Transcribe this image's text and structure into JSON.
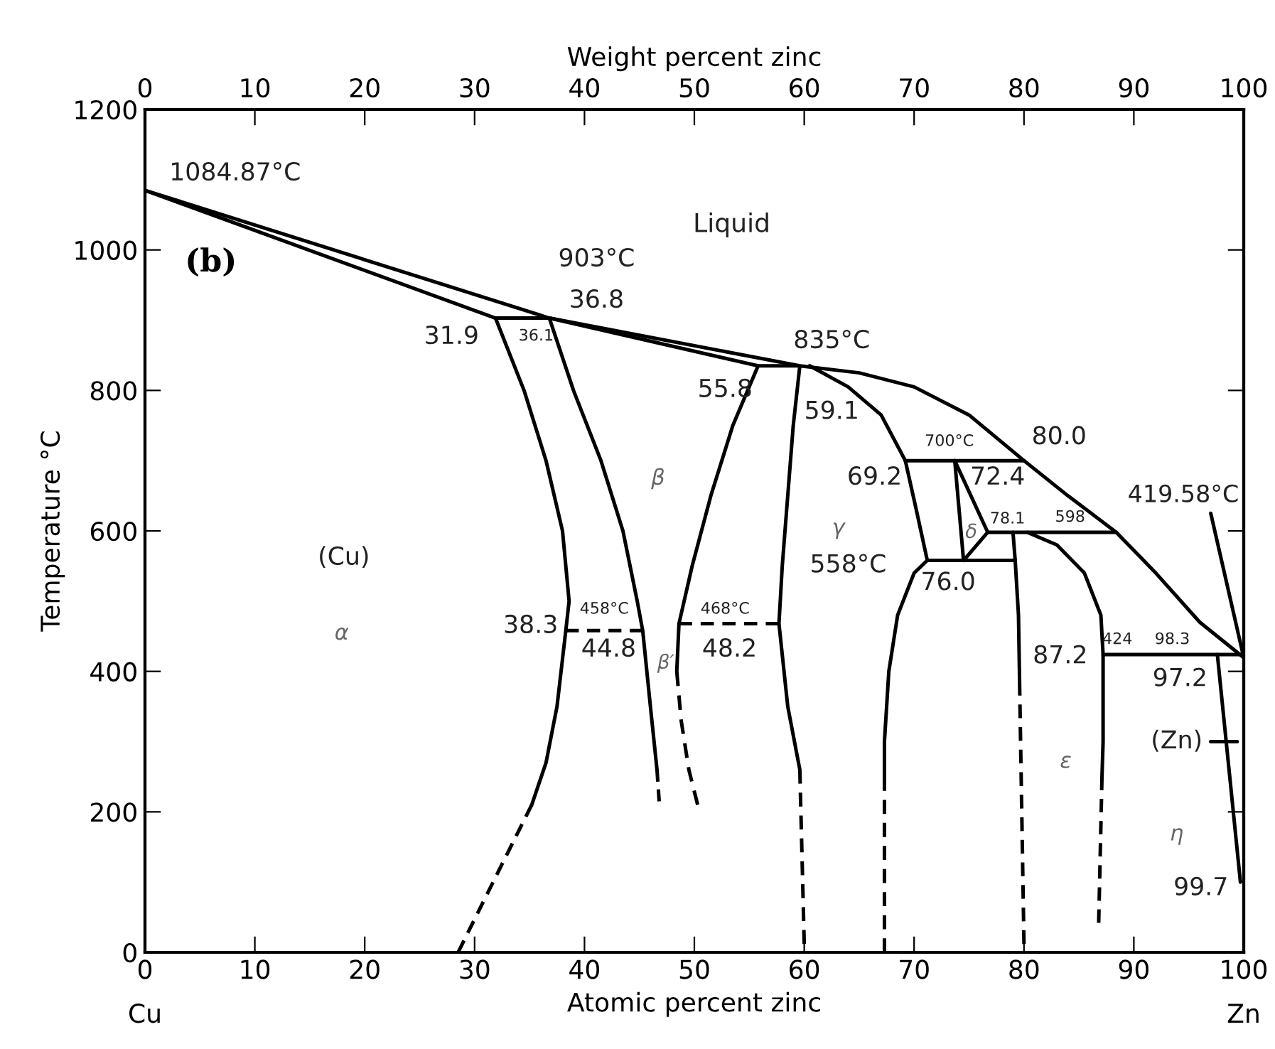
{
  "chart_data": {
    "type": "line",
    "xlabel": "Atomic percent zinc",
    "x2label": "Weight percent zinc",
    "ylabel": "Temperature °C",
    "xlim": [
      0,
      100
    ],
    "xticks": [
      0,
      10,
      20,
      30,
      40,
      50,
      60,
      70,
      80,
      90,
      100
    ],
    "x2lim": [
      0,
      100
    ],
    "x2ticks": [
      0,
      10,
      20,
      30,
      40,
      50,
      60,
      70,
      80,
      90,
      100
    ],
    "ylim": [
      0,
      1200
    ],
    "yticks": [
      0,
      200,
      400,
      600,
      800,
      1000,
      1200
    ],
    "grid": false,
    "series": [
      {
        "color": "#000000",
        "line_style": "solid",
        "x": [
          0,
          36.8,
          59.6,
          65,
          70,
          75,
          80,
          84,
          88.4,
          92,
          96,
          100
        ],
        "values": [
          1084.87,
          903,
          835,
          825,
          805,
          765,
          700,
          650,
          598,
          540,
          470,
          419.58
        ]
      },
      {
        "color": "#000000",
        "line_style": "solid",
        "x": [
          0,
          31.9,
          36.8,
          39,
          41.5,
          43.5,
          44.8,
          45.3,
          46,
          46.6
        ],
        "values": [
          1084.87,
          903,
          903,
          800,
          700,
          600,
          500,
          458,
          350,
          260
        ]
      },
      {
        "color": "#000000",
        "line_style": "solid",
        "x": [
          36.8,
          55.8,
          59.6,
          59,
          58.5,
          58,
          57.7,
          58.5,
          59.6
        ],
        "values": [
          903,
          835,
          835,
          750,
          650,
          550,
          468,
          350,
          260
        ]
      },
      {
        "color": "#000000",
        "line_style": "solid",
        "x": [
          31.9,
          34.5,
          36.5,
          38,
          38.6,
          38.3,
          37.5,
          36.5,
          35.2
        ],
        "values": [
          903,
          800,
          700,
          600,
          500,
          458,
          350,
          270,
          210
        ]
      },
      {
        "color": "#000000",
        "line_style": "dashed",
        "x": [
          35.2,
          32,
          28.5
        ],
        "values": [
          210,
          110,
          0
        ]
      },
      {
        "color": "#000000",
        "line_style": "dashed",
        "x": [
          46.6,
          46.8
        ],
        "values": [
          260,
          215
        ]
      },
      {
        "color": "#000000",
        "line_style": "solid",
        "x": [
          55.8,
          53.5,
          51.5,
          49.8,
          48.6,
          48.4
        ],
        "values": [
          835,
          750,
          650,
          550,
          468,
          400
        ]
      },
      {
        "color": "#000000",
        "line_style": "dashed",
        "x": [
          48.4,
          48.8,
          49.5,
          50.3
        ],
        "values": [
          400,
          330,
          260,
          210
        ]
      },
      {
        "color": "#000000",
        "line_style": "dashed",
        "x": [
          38.3,
          45.3
        ],
        "values": [
          458,
          458
        ]
      },
      {
        "color": "#000000",
        "line_style": "dashed",
        "x": [
          48.6,
          57.7
        ],
        "values": [
          468,
          468
        ]
      },
      {
        "color": "#000000",
        "line_style": "dashed",
        "x": [
          59.6,
          60
        ],
        "values": [
          260,
          12
        ]
      },
      {
        "color": "#000000",
        "line_style": "solid",
        "x": [
          60.5,
          64,
          67,
          69.2,
          70.2,
          71.2,
          70,
          68.5,
          67.7,
          67.3,
          67.3
        ],
        "values": [
          835,
          805,
          765,
          700,
          630,
          558,
          540,
          480,
          400,
          300,
          250
        ]
      },
      {
        "color": "#000000",
        "line_style": "dashed",
        "x": [
          67.3,
          67.3
        ],
        "values": [
          250,
          0
        ]
      },
      {
        "color": "#000000",
        "line_style": "solid",
        "x": [
          69.2,
          80
        ],
        "values": [
          700,
          700
        ]
      },
      {
        "color": "#000000",
        "line_style": "solid",
        "x": [
          73.7,
          74.5
        ],
        "values": [
          700,
          558
        ]
      },
      {
        "color": "#000000",
        "line_style": "solid",
        "x": [
          74.5,
          76.7
        ],
        "values": [
          558,
          598
        ]
      },
      {
        "color": "#000000",
        "line_style": "solid",
        "x": [
          73.7,
          76.7
        ],
        "values": [
          700,
          598
        ]
      },
      {
        "color": "#000000",
        "line_style": "solid",
        "x": [
          71.2,
          79.2
        ],
        "values": [
          558,
          558
        ]
      },
      {
        "color": "#000000",
        "line_style": "solid",
        "x": [
          76.7,
          88.4
        ],
        "values": [
          598,
          598
        ]
      },
      {
        "color": "#000000",
        "line_style": "solid",
        "x": [
          79,
          79.2,
          79.5,
          79.6
        ],
        "values": [
          598,
          558,
          480,
          385
        ]
      },
      {
        "color": "#000000",
        "line_style": "dashed",
        "x": [
          79.6,
          80
        ],
        "values": [
          385,
          12
        ]
      },
      {
        "color": "#000000",
        "line_style": "solid",
        "x": [
          80.3,
          83,
          85.5,
          87,
          87.2,
          87.2,
          87.1
        ],
        "values": [
          598,
          580,
          540,
          480,
          424,
          300,
          250
        ]
      },
      {
        "color": "#000000",
        "line_style": "dashed",
        "x": [
          87.1,
          86.8
        ],
        "values": [
          250,
          42
        ]
      },
      {
        "color": "#000000",
        "line_style": "solid",
        "x": [
          87.2,
          100
        ],
        "values": [
          424,
          424
        ]
      },
      {
        "color": "#000000",
        "line_style": "solid",
        "x": [
          97.6,
          99.7
        ],
        "values": [
          424,
          100
        ]
      },
      {
        "color": "#000000",
        "line_style": "solid",
        "x": [
          97,
          100
        ],
        "values": [
          625,
          419.58
        ]
      },
      {
        "color": "#000000",
        "line_style": "solid",
        "x": [
          97,
          99.4
        ],
        "values": [
          300,
          300
        ]
      }
    ],
    "annotations": [
      "(b)",
      "Liquid",
      "1084.87°C",
      "903°C",
      "36.8",
      "31.9",
      "36.1",
      "55.8",
      "835°C",
      "59.1",
      "700°C",
      "80.0",
      "69.2",
      "72.4",
      "78.1",
      "598",
      "419.58°C",
      "558°C",
      "76.0",
      "458°C",
      "468°C",
      "38.3",
      "44.8",
      "48.2",
      "87.2",
      "424",
      "98.3",
      "97.2",
      "(Zn)",
      "99.7",
      "(Cu)",
      "α",
      "β",
      "β′",
      "γ",
      "δ",
      "ε",
      "η",
      "Cu",
      "Zn"
    ]
  }
}
